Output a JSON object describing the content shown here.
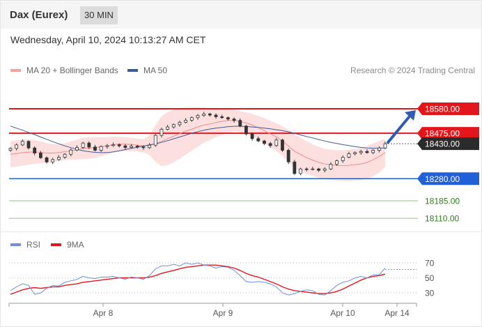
{
  "header": {
    "title": "Dax (Eurex)",
    "timeframe": "30 MIN"
  },
  "datetime": "Wednesday, April 10, 2024 10:13:27 AM CET",
  "legend": {
    "bollinger": "MA 20 + Bollinger Bands",
    "ma50": "MA 50"
  },
  "credit": "Research © 2024 Trading Central",
  "rsi_legend": {
    "rsi": "RSI",
    "ma9": "9MA"
  },
  "colors": {
    "resistance": "#e3171b",
    "support": "#2260d9",
    "target": "#2a7f17",
    "bollinger_fill": "#fbd6d6",
    "ma20": "#f08a8a",
    "ma50": "#3d5a96",
    "candle": "#333333",
    "current_price": "#2b2b2b",
    "rsi": "#6d8fd8",
    "rsi_ma": "#e3171b"
  },
  "chart_data": [
    {
      "type": "candlestick",
      "title": "",
      "ylim": [
        18245,
        18610
      ],
      "levels": [
        {
          "name": "resistance",
          "value": 18580.0,
          "label": "18580.00"
        },
        {
          "name": "resistance",
          "value": 18475.0,
          "label": "18475.00"
        },
        {
          "name": "current",
          "value": 18430.0,
          "label": "18430.00"
        },
        {
          "name": "support",
          "value": 18280.0,
          "label": "18280.00"
        },
        {
          "name": "target",
          "value": 18185.0,
          "label": "18185.00"
        },
        {
          "name": "target",
          "value": 18110.0,
          "label": "18110.00"
        }
      ],
      "x_ticks": [
        "Apr 8",
        "Apr 9",
        "Apr 10",
        "Apr 14"
      ],
      "close": [
        18410,
        18425,
        18440,
        18412,
        18390,
        18370,
        18352,
        18362,
        18372,
        18385,
        18403,
        18414,
        18433,
        18416,
        18402,
        18418,
        18422,
        18426,
        18421,
        18414,
        18420,
        18416,
        18413,
        18424,
        18466,
        18492,
        18502,
        18512,
        18522,
        18531,
        18542,
        18551,
        18558,
        18553,
        18546,
        18542,
        18536,
        18530,
        18506,
        18472,
        18452,
        18442,
        18431,
        18422,
        18446,
        18402,
        18352,
        18302,
        18322,
        18321,
        18322,
        18316,
        18322,
        18342,
        18357,
        18372,
        18387,
        18392,
        18397,
        18392,
        18402,
        18412,
        18430
      ],
      "ma20": [
        18385,
        18388,
        18392,
        18394,
        18395,
        18393,
        18390,
        18390,
        18392,
        18396,
        18400,
        18404,
        18410,
        18412,
        18413,
        18417,
        18421,
        18426,
        18428,
        18428,
        18427,
        18424,
        18421,
        18423,
        18430,
        18440,
        18451,
        18462,
        18474,
        18484,
        18493,
        18502,
        18510,
        18515,
        18521,
        18526,
        18530,
        18530,
        18526,
        18519,
        18510,
        18499,
        18486,
        18472,
        18460,
        18442,
        18420,
        18398,
        18384,
        18370,
        18360,
        18350,
        18343,
        18340,
        18337,
        18336,
        18337,
        18340,
        18343,
        18350,
        18361,
        18375,
        18392
      ],
      "bb_upper": [
        18440,
        18445,
        18448,
        18448,
        18446,
        18440,
        18432,
        18428,
        18428,
        18432,
        18440,
        18448,
        18455,
        18458,
        18458,
        18458,
        18458,
        18460,
        18460,
        18458,
        18456,
        18452,
        18450,
        18465,
        18510,
        18548,
        18566,
        18576,
        18582,
        18585,
        18586,
        18586,
        18585,
        18584,
        18583,
        18582,
        18580,
        18576,
        18570,
        18565,
        18558,
        18550,
        18540,
        18528,
        18518,
        18505,
        18490,
        18472,
        18455,
        18440,
        18428,
        18416,
        18408,
        18405,
        18402,
        18402,
        18405,
        18408,
        18412,
        18420,
        18432,
        18442,
        18452
      ],
      "bb_lower": [
        18330,
        18332,
        18336,
        18340,
        18344,
        18346,
        18348,
        18352,
        18356,
        18360,
        18362,
        18362,
        18364,
        18366,
        18368,
        18376,
        18384,
        18392,
        18396,
        18398,
        18398,
        18396,
        18392,
        18382,
        18352,
        18334,
        18338,
        18350,
        18366,
        18383,
        18400,
        18418,
        18434,
        18446,
        18458,
        18468,
        18478,
        18482,
        18480,
        18473,
        18462,
        18448,
        18430,
        18414,
        18400,
        18378,
        18352,
        18322,
        18312,
        18300,
        18292,
        18284,
        18278,
        18275,
        18272,
        18270,
        18269,
        18272,
        18274,
        18280,
        18290,
        18306,
        18330
      ],
      "ma50": [
        18506,
        18497,
        18488,
        18479,
        18469,
        18459,
        18449,
        18439,
        18430,
        18421,
        18413,
        18406,
        18400,
        18396,
        18393,
        18392,
        18392,
        18395,
        18400,
        18405,
        18410,
        18415,
        18420,
        18425,
        18430,
        18436,
        18443,
        18451,
        18459,
        18467,
        18475,
        18482,
        18488,
        18493,
        18497,
        18500,
        18503,
        18505,
        18505,
        18504,
        18502,
        18500,
        18497,
        18494,
        18490,
        18486,
        18481,
        18475,
        18468,
        18461,
        18455,
        18448,
        18442,
        18436,
        18431,
        18426,
        18422,
        18418,
        18414,
        18412,
        18411,
        18411,
        18412
      ]
    },
    {
      "type": "line",
      "title": "",
      "ylim": [
        20,
        80
      ],
      "y_ticks": [
        70,
        50,
        30
      ],
      "series": [
        {
          "name": "RSI",
          "values": [
            33,
            38,
            42,
            40,
            28,
            30,
            36,
            40,
            39,
            44,
            46,
            48,
            52,
            50,
            49,
            51,
            51,
            52,
            50,
            48,
            51,
            50,
            48,
            53,
            62,
            66,
            66,
            68,
            66,
            70,
            68,
            70,
            67,
            66,
            63,
            65,
            64,
            60,
            53,
            45,
            44,
            45,
            44,
            42,
            38,
            30,
            27,
            29,
            32,
            34,
            33,
            28,
            27,
            33,
            40,
            44,
            46,
            50,
            52,
            50,
            54,
            54,
            63
          ]
        },
        {
          "name": "9MA",
          "values": [
            28,
            31,
            34,
            36,
            37,
            36,
            37,
            38,
            38,
            40,
            41,
            42,
            44,
            45,
            46,
            47,
            48,
            49,
            50,
            50,
            50,
            50,
            50,
            51,
            53,
            56,
            58,
            60,
            62,
            64,
            65,
            66,
            67,
            67,
            67,
            66,
            65,
            63,
            60,
            56,
            53,
            51,
            48,
            45,
            42,
            38,
            35,
            33,
            32,
            31,
            30,
            29,
            29,
            30,
            32,
            35,
            39,
            43,
            47,
            50,
            52,
            53,
            55
          ]
        }
      ]
    }
  ]
}
